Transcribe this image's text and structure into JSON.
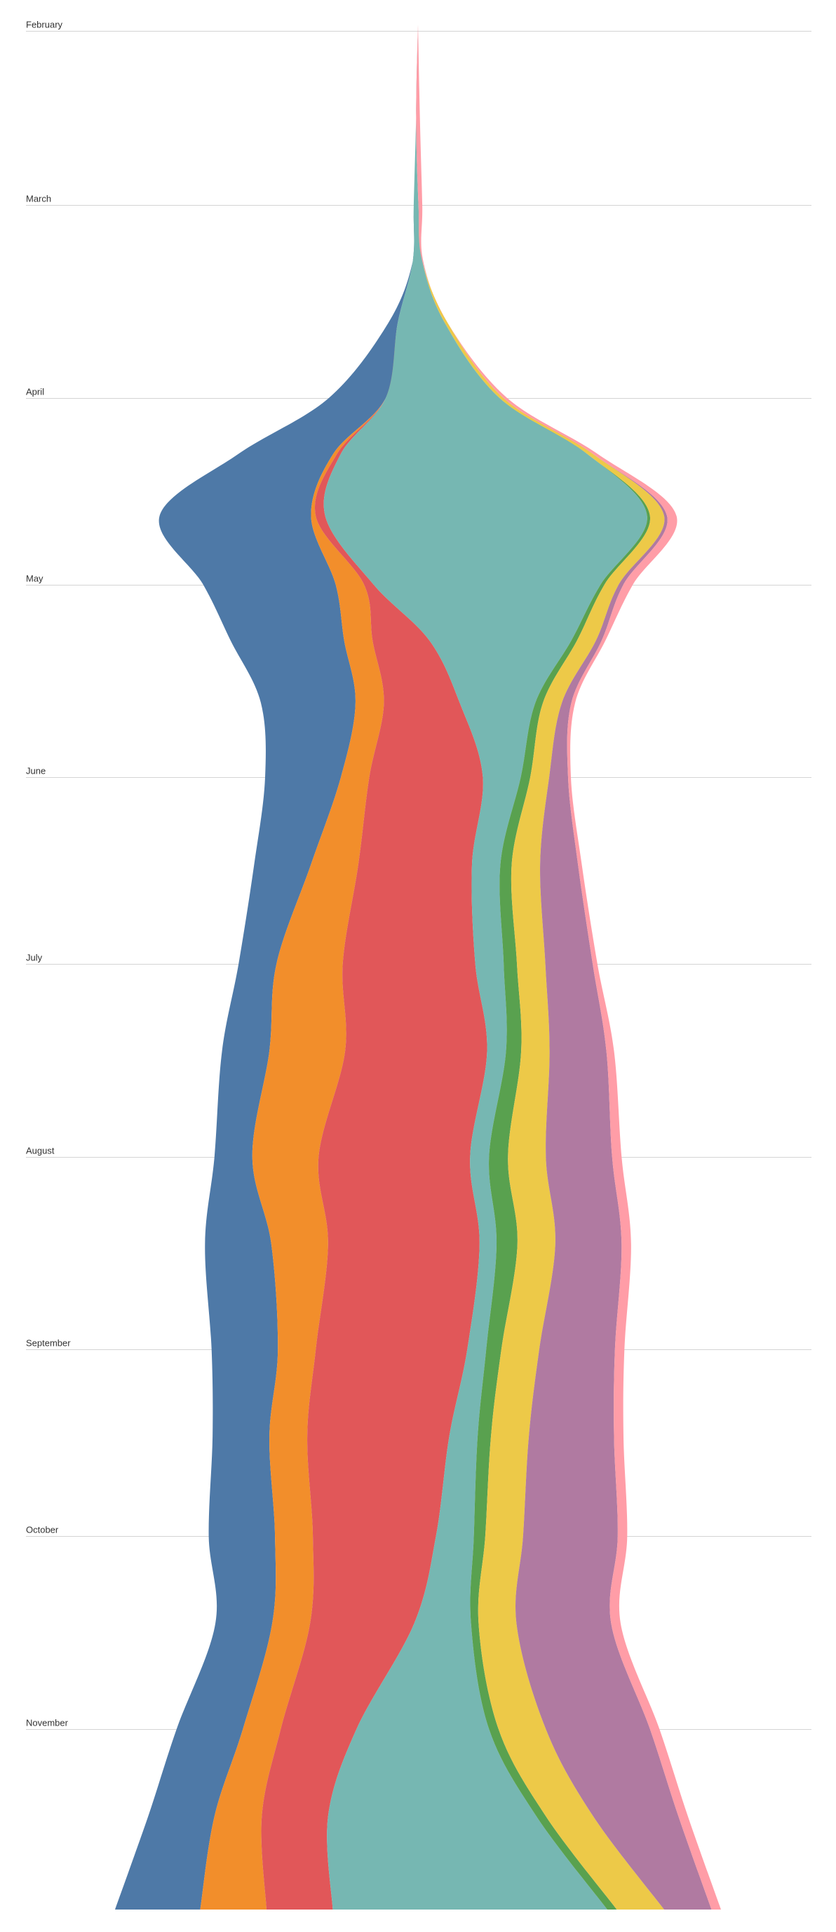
{
  "chart_data": {
    "type": "area",
    "layout": "streamgraph",
    "orientation": "vertical",
    "title": "",
    "xlabel": "",
    "ylabel": "",
    "axis_range": [
      "2017-01-31",
      "2017-11-30"
    ],
    "grid": true,
    "legend": "none",
    "month_ticks": [
      {
        "label": "February",
        "date": "2017-02-01"
      },
      {
        "label": "March",
        "date": "2017-03-01"
      },
      {
        "label": "April",
        "date": "2017-04-01"
      },
      {
        "label": "May",
        "date": "2017-05-01"
      },
      {
        "label": "June",
        "date": "2017-06-01"
      },
      {
        "label": "July",
        "date": "2017-07-01"
      },
      {
        "label": "August",
        "date": "2017-08-01"
      },
      {
        "label": "September",
        "date": "2017-09-01"
      },
      {
        "label": "October",
        "date": "2017-10-01"
      },
      {
        "label": "November",
        "date": "2017-11-01"
      }
    ],
    "dates": [
      "2017-01-31",
      "2017-02-15",
      "2017-03-01",
      "2017-03-10",
      "2017-03-20",
      "2017-04-01",
      "2017-04-10",
      "2017-04-20",
      "2017-05-01",
      "2017-05-10",
      "2017-05-20",
      "2017-06-01",
      "2017-06-15",
      "2017-07-01",
      "2017-07-15",
      "2017-08-01",
      "2017-08-15",
      "2017-09-01",
      "2017-09-15",
      "2017-10-01",
      "2017-10-15",
      "2017-11-01",
      "2017-11-15",
      "2017-11-30"
    ],
    "series": [
      {
        "color": "#4e79a7",
        "values": [
          0,
          0,
          0,
          0,
          1,
          6,
          10,
          16,
          14,
          12,
          10,
          8,
          6,
          4,
          5,
          4,
          7,
          7,
          6,
          7,
          6,
          7,
          7,
          9
        ]
      },
      {
        "color": "#f28e2b",
        "values": [
          0,
          0,
          0,
          0,
          0,
          0,
          0.4,
          0.5,
          3,
          3,
          3,
          3,
          5,
          7,
          8,
          7,
          6,
          4,
          4,
          4,
          4,
          4,
          5,
          7
        ]
      },
      {
        "color": "#e15759",
        "values": [
          0,
          0,
          0,
          0,
          0,
          0,
          0.4,
          1,
          1,
          6,
          8,
          12,
          12,
          14,
          15,
          16,
          16,
          16,
          15,
          13,
          11,
          8,
          7,
          7
        ]
      },
      {
        "color": "#76b7b2",
        "values": [
          0,
          0,
          0.5,
          1,
          5,
          12,
          26,
          34,
          24,
          15,
          8,
          4,
          3,
          3,
          2,
          2,
          1.8,
          2,
          3,
          4,
          6,
          14,
          22,
          29
        ]
      },
      {
        "color": "#59a14f",
        "values": [
          0,
          0,
          0,
          0,
          0,
          0,
          0,
          0.3,
          0.4,
          0.6,
          0.8,
          1,
          1.2,
          1.4,
          1.6,
          2,
          2.2,
          1.6,
          1.4,
          1.2,
          0.8,
          1,
          1,
          1
        ]
      },
      {
        "color": "#edc948",
        "values": [
          0,
          0,
          0,
          0,
          0.3,
          0.4,
          0.6,
          1.5,
          1.5,
          2,
          2,
          2,
          3,
          3,
          3,
          4,
          4,
          4,
          4,
          4,
          4,
          5,
          5,
          5
        ]
      },
      {
        "color": "#b07aa1",
        "values": [
          0,
          0,
          0,
          0,
          0,
          0,
          0,
          0.3,
          0.5,
          0.6,
          1,
          2,
          4,
          5,
          6,
          7,
          7,
          8,
          9,
          10,
          10,
          11,
          9,
          5
        ]
      },
      {
        "color": "#ff9da7",
        "values": [
          0,
          0.4,
          0.4,
          0.1,
          0,
          0.4,
          0.5,
          1,
          1,
          0.4,
          0.4,
          0.3,
          0.4,
          0.5,
          0.8,
          1,
          1,
          1,
          1,
          1,
          1,
          1,
          1,
          1
        ]
      }
    ]
  }
}
